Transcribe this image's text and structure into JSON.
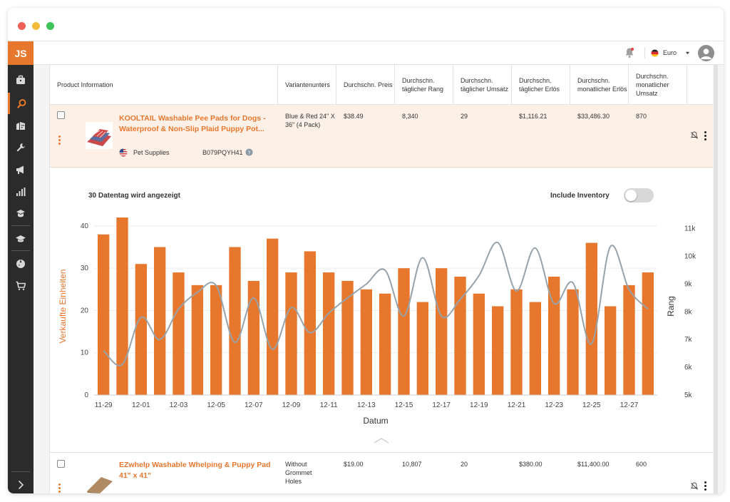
{
  "window": {
    "dot_colors": [
      "#ee5f58",
      "#f2bd3c",
      "#3cc35a"
    ]
  },
  "sidebar": {
    "logo": "JS",
    "items": [
      {
        "icon": "briefcase-icon"
      },
      {
        "icon": "search-icon",
        "active": true
      },
      {
        "icon": "building-icon"
      },
      {
        "icon": "wrench-icon"
      },
      {
        "icon": "megaphone-icon"
      },
      {
        "icon": "bar-chart-icon"
      },
      {
        "icon": "academy-icon"
      },
      {
        "icon": "graduation-cap-icon"
      },
      {
        "icon": "aperture-icon"
      },
      {
        "icon": "cart-icon"
      }
    ],
    "expand_icon": "chevron-right-icon"
  },
  "topbar": {
    "currency": "Euro",
    "notification_icon": "bell-icon",
    "flag_icon": "germany-flag-icon",
    "avatar_icon": "user-avatar-icon"
  },
  "table": {
    "headers": [
      "Product Information",
      "Variantenunters",
      "Durchschn. Preis",
      "Durchschn. täglicher Rang",
      "Durchschn. täglicher Umsatz",
      "Durchschn. täglicher Erlös",
      "Durchschn. monatlicher Erlös",
      "Durchschn. monatlicher Umsatz"
    ],
    "rows": [
      {
        "title": "KOOLTAIL Washable Pee Pads for Dogs - Waterproof & Non-Slip Plaid Puppy Pot...",
        "category": "Pet Supplies",
        "asin": "B079PQYH41",
        "variant": "Blue & Red 24\" X 36\" (4 Pack)",
        "price": "$38.49",
        "rank": "8,340",
        "sales": "29",
        "revenue": "$1,116.21",
        "monthly_revenue": "$33,486.30",
        "monthly_sales": "870"
      },
      {
        "title": "EZwhelp Washable Whelping & Puppy Pad 41\" x 41\"",
        "variant": "Without Grommet Holes",
        "price": "$19.00",
        "rank": "10,807",
        "sales": "20",
        "revenue": "$380.00",
        "monthly_revenue": "$11,400.00",
        "monthly_sales": "600"
      }
    ]
  },
  "chart_header": {
    "days_label": "30 Datentag wird angezeigt",
    "inventory_label": "Include Inventory",
    "inventory_on": false
  },
  "chart_data": {
    "type": "bar",
    "categories": [
      "11-29",
      "11-30",
      "12-01",
      "12-02",
      "12-03",
      "12-04",
      "12-05",
      "12-06",
      "12-07",
      "12-08",
      "12-09",
      "12-10",
      "12-11",
      "12-12",
      "12-13",
      "12-14",
      "12-15",
      "12-16",
      "12-17",
      "12-18",
      "12-19",
      "12-20",
      "12-21",
      "12-22",
      "12-23",
      "12-24",
      "12-25",
      "12-26",
      "12-27",
      "12-28"
    ],
    "tick_labels": [
      "11-29",
      "12-01",
      "12-03",
      "12-05",
      "12-07",
      "12-09",
      "12-11",
      "12-13",
      "12-15",
      "12-17",
      "12-19",
      "12-21",
      "12-23",
      "12-25",
      "12-27"
    ],
    "series": [
      {
        "name": "Verkaufte Einheiten",
        "type": "bar",
        "axis": "left",
        "values": [
          38,
          42,
          31,
          35,
          29,
          26,
          26,
          35,
          27,
          37,
          29,
          34,
          29,
          27,
          25,
          24,
          30,
          22,
          30,
          28,
          24,
          21,
          25,
          22,
          28,
          25,
          36,
          21,
          26,
          29
        ]
      },
      {
        "name": "Rang",
        "type": "line",
        "axis": "right",
        "values": [
          6600,
          6100,
          7800,
          7000,
          8100,
          8700,
          8950,
          6900,
          8500,
          6650,
          8150,
          7250,
          7950,
          8500,
          9000,
          9500,
          7850,
          9950,
          7850,
          8450,
          9300,
          10500,
          8750,
          10300,
          8300,
          9050,
          6850,
          10350,
          8800,
          8100
        ]
      }
    ],
    "xlabel": "Datum",
    "ylabel": "Verkaufte Einheiten",
    "y2label": "Rang",
    "ylim": [
      0,
      42
    ],
    "yticks": [
      0,
      10,
      20,
      30,
      40
    ],
    "y2lim": [
      5000,
      11400
    ],
    "y2ticks": [
      "5k",
      "6k",
      "7k",
      "8k",
      "9k",
      "10k",
      "11k"
    ],
    "y2tick_values": [
      5000,
      6000,
      7000,
      8000,
      9000,
      10000,
      11000
    ],
    "grid": true,
    "colors": {
      "bar": "#e8772e",
      "line": "#96a3ab",
      "ylabel": "#e8772e"
    }
  }
}
